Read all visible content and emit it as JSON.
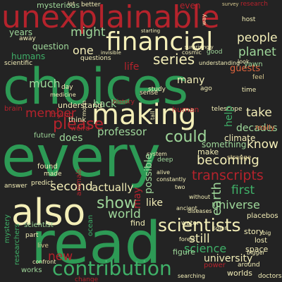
{
  "palette": {
    "background": "#232323",
    "green": "#2d9a55",
    "bright_green": "#3fb068",
    "red": "#b5232c",
    "cream": "#f4efb8",
    "light_green": "#9fd79a",
    "orange": "#e0643d",
    "tan": "#d9c98f"
  },
  "words": [
    {
      "text": "unexplainable",
      "color": "red"
    },
    {
      "text": "choices",
      "color": "green"
    },
    {
      "text": "every",
      "color": "green"
    },
    {
      "text": "read",
      "color": "green"
    },
    {
      "text": "financial",
      "color": "cream"
    },
    {
      "text": "making",
      "color": "cream"
    },
    {
      "text": "also",
      "color": "cream"
    },
    {
      "text": "contribution",
      "color": "bright_green"
    },
    {
      "text": "scientists",
      "color": "cream"
    },
    {
      "text": "transcripts",
      "color": "red"
    },
    {
      "text": "becoming",
      "color": "cream"
    },
    {
      "text": "please",
      "color": "red"
    },
    {
      "text": "could",
      "color": "light_green"
    },
    {
      "text": "might",
      "color": "light_green"
    },
    {
      "text": "series",
      "color": "cream"
    },
    {
      "text": "people",
      "color": "cream"
    },
    {
      "text": "planet",
      "color": "light_green"
    },
    {
      "text": "member",
      "color": "red"
    },
    {
      "text": "show",
      "color": "light_green"
    },
    {
      "text": "world",
      "color": "light_green"
    },
    {
      "text": "still",
      "color": "cream"
    },
    {
      "text": "second",
      "color": "cream"
    },
    {
      "text": "new",
      "color": "red"
    },
    {
      "text": "first",
      "color": "bright_green"
    },
    {
      "text": "universe",
      "color": "light_green"
    },
    {
      "text": "university",
      "color": "cream"
    },
    {
      "text": "science",
      "color": "bright_green"
    },
    {
      "text": "actually",
      "color": "cream"
    },
    {
      "text": "many",
      "color": "cream"
    },
    {
      "text": "take",
      "color": "cream"
    },
    {
      "text": "know",
      "color": "cream"
    },
    {
      "text": "professor",
      "color": "light_green"
    },
    {
      "text": "much",
      "color": "light_green"
    },
    {
      "text": "one",
      "color": "cream"
    },
    {
      "text": "question",
      "color": "light_green"
    },
    {
      "text": "humans",
      "color": "bright_green"
    },
    {
      "text": "years",
      "color": "light_green"
    },
    {
      "text": "earth",
      "color": "light_green"
    },
    {
      "text": "life",
      "color": "red"
    },
    {
      "text": "help",
      "color": "bright_green"
    },
    {
      "text": "decades",
      "color": "light_green"
    },
    {
      "text": "does",
      "color": "light_green"
    },
    {
      "text": "like",
      "color": "cream"
    },
    {
      "text": "possible",
      "color": "light_green"
    },
    {
      "text": "may",
      "color": "red"
    },
    {
      "text": "guests",
      "color": "orange"
    },
    {
      "text": "even",
      "color": "red"
    },
    {
      "text": "back",
      "color": "light_green"
    },
    {
      "text": "understand",
      "color": "cream"
    },
    {
      "text": "future",
      "color": "light_green"
    },
    {
      "text": "trying",
      "color": "red"
    },
    {
      "text": "climate",
      "color": "cream"
    },
    {
      "text": "something",
      "color": "light_green"
    },
    {
      "text": "make",
      "color": "cream"
    },
    {
      "text": "research",
      "color": "red"
    },
    {
      "text": "mysterious",
      "color": "light_green"
    },
    {
      "text": "better",
      "color": "cream"
    },
    {
      "text": "survey",
      "color": "tan"
    },
    {
      "text": "scientific",
      "color": "cream"
    },
    {
      "text": "questions",
      "color": "cream"
    },
    {
      "text": "feel",
      "color": "tan"
    },
    {
      "text": "yawn",
      "color": "light_green"
    },
    {
      "text": "mystery",
      "color": "bright_green"
    },
    {
      "text": "animals",
      "color": "red"
    },
    {
      "text": "change",
      "color": "red"
    },
    {
      "text": "answer",
      "color": "cream"
    },
    {
      "text": "ocean",
      "color": "bright_green"
    },
    {
      "text": "find",
      "color": "cream"
    },
    {
      "text": "figure",
      "color": "light_green"
    },
    {
      "text": "space",
      "color": "cream"
    },
    {
      "text": "story",
      "color": "cream"
    },
    {
      "text": "worlds",
      "color": "cream"
    },
    {
      "text": "works",
      "color": "light_green"
    },
    {
      "text": "live",
      "color": "tan"
    },
    {
      "text": "lost",
      "color": "cream"
    },
    {
      "text": "scientist",
      "color": "light_green"
    },
    {
      "text": "part",
      "color": "cream"
    },
    {
      "text": "predict",
      "color": "cream"
    },
    {
      "text": "made",
      "color": "cream"
    },
    {
      "text": "found",
      "color": "cream"
    },
    {
      "text": "weird",
      "color": "red"
    },
    {
      "text": "think",
      "color": "cream"
    },
    {
      "text": "day",
      "color": "cream"
    },
    {
      "text": "medicine",
      "color": "cream"
    },
    {
      "text": "brain",
      "color": "red"
    },
    {
      "text": "telescope",
      "color": "cream"
    },
    {
      "text": "human",
      "color": "red"
    },
    {
      "text": "history",
      "color": "red"
    },
    {
      "text": "sense",
      "color": "cream"
    },
    {
      "text": "study",
      "color": "cream"
    },
    {
      "text": "ago",
      "color": "cream"
    },
    {
      "text": "time",
      "color": "cream"
    },
    {
      "text": "look",
      "color": "cream"
    },
    {
      "text": "really",
      "color": "orange"
    },
    {
      "text": "strange",
      "color": "tan"
    },
    {
      "text": "good",
      "color": "light_green"
    },
    {
      "text": "cosmic",
      "color": "cream"
    },
    {
      "text": "host",
      "color": "cream"
    },
    {
      "text": "way",
      "color": "cream"
    },
    {
      "text": "away",
      "color": "cream"
    },
    {
      "text": "invisible",
      "color": "cream"
    },
    {
      "text": "surprisingly",
      "color": "cream"
    },
    {
      "text": "understanding",
      "color": "cream"
    },
    {
      "text": "starting",
      "color": "cream"
    },
    {
      "text": "system",
      "color": "cream"
    },
    {
      "text": "deep",
      "color": "light_green"
    },
    {
      "text": "alive",
      "color": "cream"
    },
    {
      "text": "constantly",
      "color": "cream"
    },
    {
      "text": "placebos",
      "color": "cream"
    },
    {
      "text": "without",
      "color": "cream"
    },
    {
      "text": "diseases",
      "color": "cream"
    },
    {
      "text": "ancient",
      "color": "cream"
    },
    {
      "text": "forest",
      "color": "cream"
    },
    {
      "text": "bigger",
      "color": "cream"
    },
    {
      "text": "doctors",
      "color": "cream"
    },
    {
      "text": "searching",
      "color": "cream"
    },
    {
      "text": "power",
      "color": "red"
    },
    {
      "text": "around",
      "color": "cream"
    },
    {
      "text": "researchers",
      "color": "bright_green"
    },
    {
      "text": "confront",
      "color": "cream"
    },
    {
      "text": "moon",
      "color": "cream"
    },
    {
      "text": "solar",
      "color": "cream"
    },
    {
      "text": "water",
      "color": "cream"
    },
    {
      "text": "tall",
      "color": "cream"
    },
    {
      "text": "big",
      "color": "cream"
    },
    {
      "text": "two",
      "color": "cream"
    },
    {
      "text": "lot",
      "color": "cream"
    }
  ]
}
